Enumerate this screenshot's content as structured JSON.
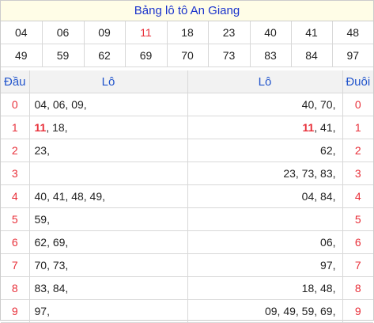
{
  "title": "Bảng lô tô An Giang",
  "numbers": [
    [
      "04",
      "06",
      "09",
      "11",
      "18",
      "23",
      "40",
      "41",
      "48"
    ],
    [
      "49",
      "59",
      "62",
      "69",
      "70",
      "73",
      "83",
      "84",
      "97"
    ]
  ],
  "highlighted_number": "11",
  "headers": {
    "dau": "Đầu",
    "lo_left": "Lô",
    "lo_right": "Lô",
    "duoi": "Đuôi"
  },
  "rows": [
    {
      "dau": "0",
      "head_hl": "",
      "head": "04, 06, 09,",
      "tail_hl": "",
      "tail": "40, 70,",
      "duoi": "0"
    },
    {
      "dau": "1",
      "head_hl": "11",
      "head": ", 18,",
      "tail_hl": "11",
      "tail": ", 41,",
      "duoi": "1"
    },
    {
      "dau": "2",
      "head_hl": "",
      "head": "23,",
      "tail_hl": "",
      "tail": "62,",
      "duoi": "2"
    },
    {
      "dau": "3",
      "head_hl": "",
      "head": "",
      "tail_hl": "",
      "tail": "23, 73, 83,",
      "duoi": "3"
    },
    {
      "dau": "4",
      "head_hl": "",
      "head": "40, 41, 48, 49,",
      "tail_hl": "",
      "tail": "04, 84,",
      "duoi": "4"
    },
    {
      "dau": "5",
      "head_hl": "",
      "head": "59,",
      "tail_hl": "",
      "tail": "",
      "duoi": "5"
    },
    {
      "dau": "6",
      "head_hl": "",
      "head": "62, 69,",
      "tail_hl": "",
      "tail": "06,",
      "duoi": "6"
    },
    {
      "dau": "7",
      "head_hl": "",
      "head": "70, 73,",
      "tail_hl": "",
      "tail": "97,",
      "duoi": "7"
    },
    {
      "dau": "8",
      "head_hl": "",
      "head": "83, 84,",
      "tail_hl": "",
      "tail": "18, 48,",
      "duoi": "8"
    },
    {
      "dau": "9",
      "head_hl": "",
      "head": "97,",
      "tail_hl": "",
      "tail": "09, 49, 59, 69,",
      "duoi": "9"
    }
  ],
  "colors": {
    "title_text": "#1a33cc",
    "title_bg": "#fffde7",
    "accent_red": "#e8303a",
    "header_text": "#2255cc"
  }
}
